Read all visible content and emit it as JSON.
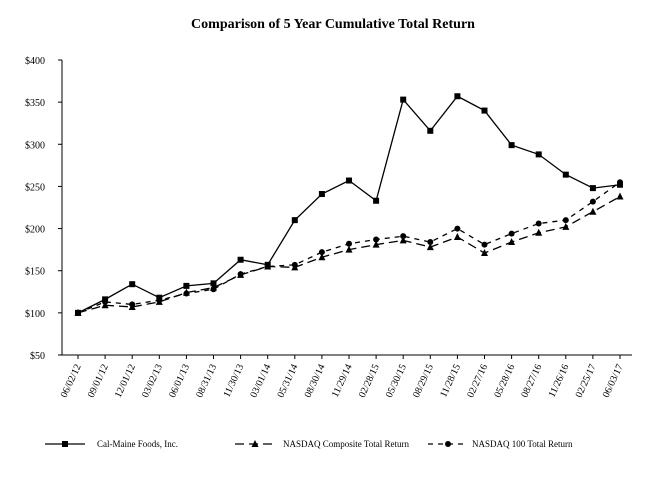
{
  "chart_data": {
    "type": "line",
    "title": "Comparison of 5 Year Cumulative Total Return",
    "xlabel": "",
    "ylabel": "",
    "ylim": [
      50,
      400
    ],
    "yticks": [
      "$50",
      "$100",
      "$150",
      "$200",
      "$250",
      "$300",
      "$350",
      "$400"
    ],
    "ytick_values": [
      50,
      100,
      150,
      200,
      250,
      300,
      350,
      400
    ],
    "categories": [
      "06/02/12",
      "09/01/12",
      "12/01/12",
      "03/02/13",
      "06/01/13",
      "08/31/13",
      "11/30/13",
      "03/01/14",
      "05/31/14",
      "08/30/14",
      "11/29/14",
      "02/28/15",
      "05/30/15",
      "08/29/15",
      "11/28/15",
      "02/27/16",
      "05/28/16",
      "08/27/16",
      "11/26/16",
      "02/25/17",
      "06/03/17"
    ],
    "series": [
      {
        "name": "Cal-Maine Foods, Inc.",
        "marker": "square",
        "dash": "solid",
        "values": [
          100,
          116,
          134,
          118,
          132,
          135,
          163,
          157,
          210,
          241,
          257,
          233,
          353,
          316,
          357,
          340,
          299,
          288,
          264,
          248,
          252
        ]
      },
      {
        "name": "NASDAQ Composite Total Return",
        "marker": "triangle",
        "dash": "long",
        "values": [
          100,
          109,
          107,
          113,
          124,
          130,
          145,
          155,
          154,
          166,
          175,
          181,
          186,
          178,
          190,
          171,
          184,
          195,
          202,
          220,
          238
        ]
      },
      {
        "name": "NASDAQ 100 Total Return",
        "marker": "circle",
        "dash": "short",
        "values": [
          100,
          113,
          110,
          115,
          123,
          128,
          146,
          155,
          157,
          172,
          182,
          187,
          191,
          184,
          200,
          181,
          194,
          206,
          210,
          232,
          255
        ]
      }
    ],
    "grid": false,
    "legend_position": "bottom"
  }
}
